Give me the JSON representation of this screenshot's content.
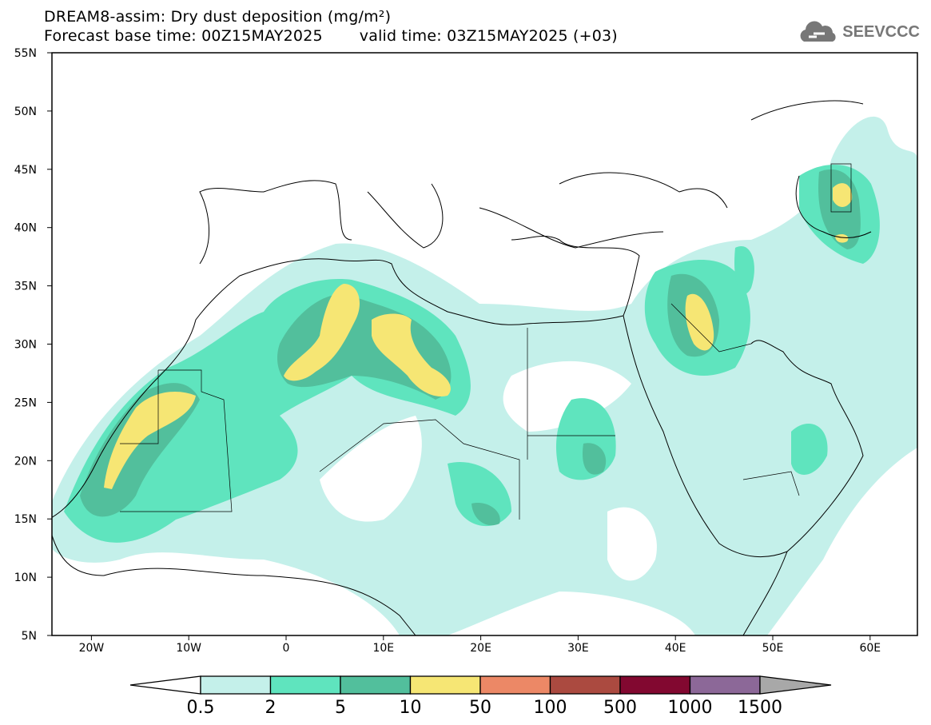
{
  "title": "DREAM8-assim: Dry dust deposition (mg/m²)",
  "forecast_base": "Forecast base time: 00Z15MAY2025",
  "valid_time": "valid time: 03Z15MAY2025 (+03)",
  "logo": {
    "text": "SEEVCCC",
    "icon": "cloud-icon"
  },
  "map": {
    "lat_labels": [
      "55N",
      "50N",
      "45N",
      "40N",
      "35N",
      "30N",
      "25N",
      "20N",
      "15N",
      "10N",
      "5N"
    ],
    "lon_labels": [
      "20W",
      "10W",
      "0",
      "10E",
      "20E",
      "30E",
      "40E",
      "50E",
      "60E"
    ],
    "lon_values": [
      -20,
      -10,
      0,
      10,
      20,
      30,
      40,
      50,
      60
    ],
    "lat_values": [
      55,
      50,
      45,
      40,
      35,
      30,
      25,
      20,
      15,
      10,
      5
    ]
  },
  "colorbar": {
    "labels": [
      "0.5",
      "2",
      "5",
      "10",
      "50",
      "100",
      "500",
      "1000",
      "1500"
    ],
    "colors": [
      "#c4f0ea",
      "#5fe4be",
      "#52bf9c",
      "#f6e674",
      "#ec8866",
      "#ab4a40",
      "#820830",
      "#8c6898"
    ],
    "under_color": "#ffffff",
    "over_color": "#a8a8a8"
  }
}
